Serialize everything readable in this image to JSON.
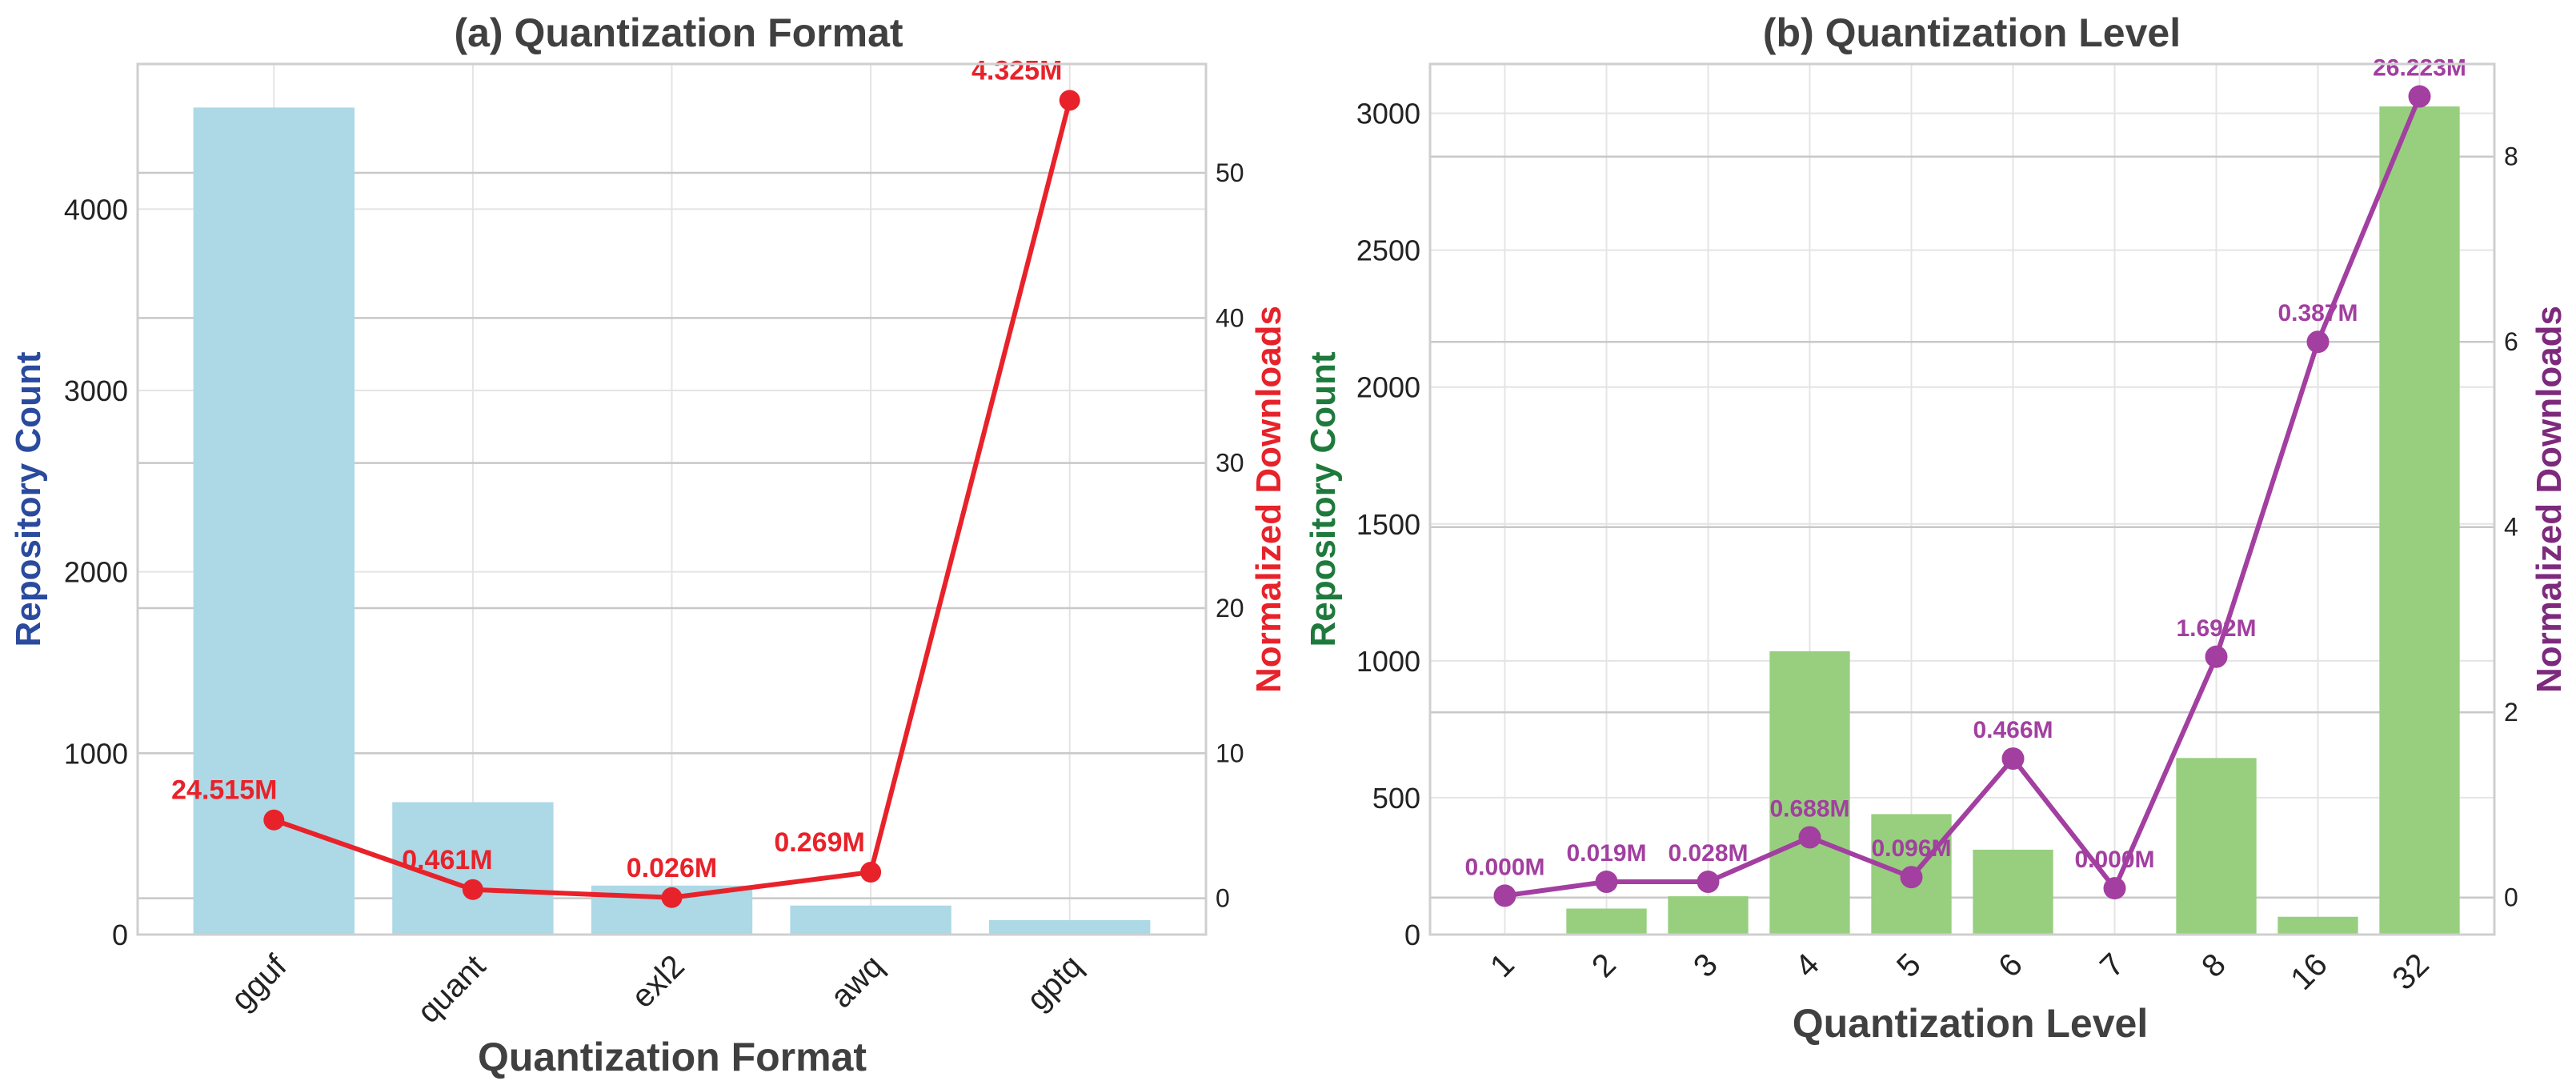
{
  "chart_data": [
    {
      "type": "bar",
      "title": "(a) Quantization Format",
      "xlabel": "Quantization Format",
      "ylabel": "Repository Count",
      "y2label": "Normalized Downloads",
      "categories": [
        "gguf",
        "quant",
        "exl2",
        "awq",
        "gptq"
      ],
      "series": [
        {
          "name": "Repository Count",
          "type": "bar",
          "axis": "left",
          "values": [
            4560,
            730,
            270,
            160,
            80
          ]
        },
        {
          "name": "Normalized Downloads",
          "type": "line",
          "axis": "right",
          "values": [
            5.4,
            0.6,
            0.05,
            1.8,
            55.0
          ]
        }
      ],
      "data_labels": [
        "24.515M",
        "0.461M",
        "0.026M",
        "0.269M",
        "4.325M"
      ],
      "ylim": [
        0,
        4800
      ],
      "yticks": [
        0,
        1000,
        2000,
        3000,
        4000
      ],
      "y2lim": [
        -2.5,
        57.5
      ],
      "y2ticks": [
        0,
        10,
        20,
        30,
        40,
        50
      ],
      "colors": {
        "bar": "#add8e6",
        "line": "#e8222a",
        "ylabel": "#2a4a9e",
        "y2label": "#e8222a"
      },
      "grid": true
    },
    {
      "type": "bar",
      "title": "(b) Quantization Level",
      "xlabel": "Quantization Level",
      "ylabel": "Repository Count",
      "y2label": "Normalized Downloads",
      "categories": [
        "1",
        "2",
        "3",
        "4",
        "5",
        "6",
        "7",
        "8",
        "16",
        "32"
      ],
      "series": [
        {
          "name": "Repository Count",
          "type": "bar",
          "axis": "left",
          "values": [
            0,
            95,
            140,
            1035,
            440,
            310,
            0,
            645,
            65,
            3025
          ]
        },
        {
          "name": "Normalized Downloads",
          "type": "line",
          "axis": "right",
          "values": [
            0.02,
            0.17,
            0.17,
            0.65,
            0.22,
            1.5,
            0.1,
            2.6,
            6.0,
            8.65
          ]
        }
      ],
      "data_labels": [
        "0.000M",
        "0.019M",
        "0.028M",
        "0.688M",
        "0.096M",
        "0.466M",
        "0.000M",
        "1.692M",
        "0.387M",
        "26.223M"
      ],
      "ylim": [
        0,
        3180
      ],
      "yticks": [
        0,
        500,
        1000,
        1500,
        2000,
        2500,
        3000
      ],
      "y2lim": [
        -0.4,
        9.0
      ],
      "y2ticks": [
        0,
        2,
        4,
        6,
        8
      ],
      "colors": {
        "bar": "#97cf7f",
        "line": "#a23fa0",
        "ylabel": "#1e7a3c",
        "y2label": "#7d2a7d"
      },
      "grid": true
    }
  ]
}
